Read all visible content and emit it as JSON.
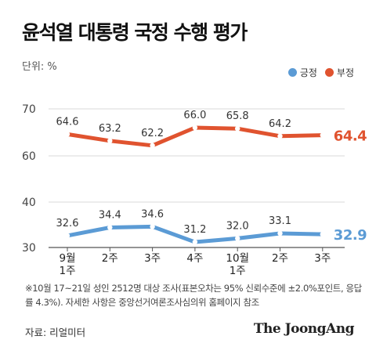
{
  "title": "윤석열 대통령 국정 수행 평가",
  "unit_label": "단위: %",
  "note": "※10월 17~21일 성인 2512명 대상 조사(표본오차는 95% 신뢰수준에 ±2.0%포인트, 응답률 4.3%). 자세한 사항은 중앙선거여론조사심의위 홈페이지 참조",
  "source": "자료: 리얼미터",
  "brand": "The JoongAng",
  "colors": {
    "positive": "#5b9bd5",
    "negative": "#e0532f",
    "grid": "#cccccc",
    "text": "#333333"
  },
  "chart_data": {
    "type": "line",
    "title": "윤석열 대통령 국정 수행 평가",
    "xlabel": "",
    "ylabel": "",
    "ylim": [
      30,
      70
    ],
    "yticks": [
      30,
      40,
      60,
      70
    ],
    "axis_break": [
      40,
      60
    ],
    "grid": true,
    "legend_position": "top-right",
    "categories": [
      [
        "9월",
        "1주"
      ],
      [
        "2주"
      ],
      [
        "3주"
      ],
      [
        "4주"
      ],
      [
        "10월",
        "1주"
      ],
      [
        "2주"
      ],
      [
        "3주"
      ]
    ],
    "series": [
      {
        "name": "긍정",
        "color": "#5b9bd5",
        "values": [
          32.6,
          34.4,
          34.6,
          31.2,
          32.0,
          33.1,
          32.9
        ]
      },
      {
        "name": "부정",
        "color": "#e0532f",
        "values": [
          64.6,
          63.2,
          62.2,
          66.0,
          65.8,
          64.2,
          64.4
        ]
      }
    ]
  }
}
